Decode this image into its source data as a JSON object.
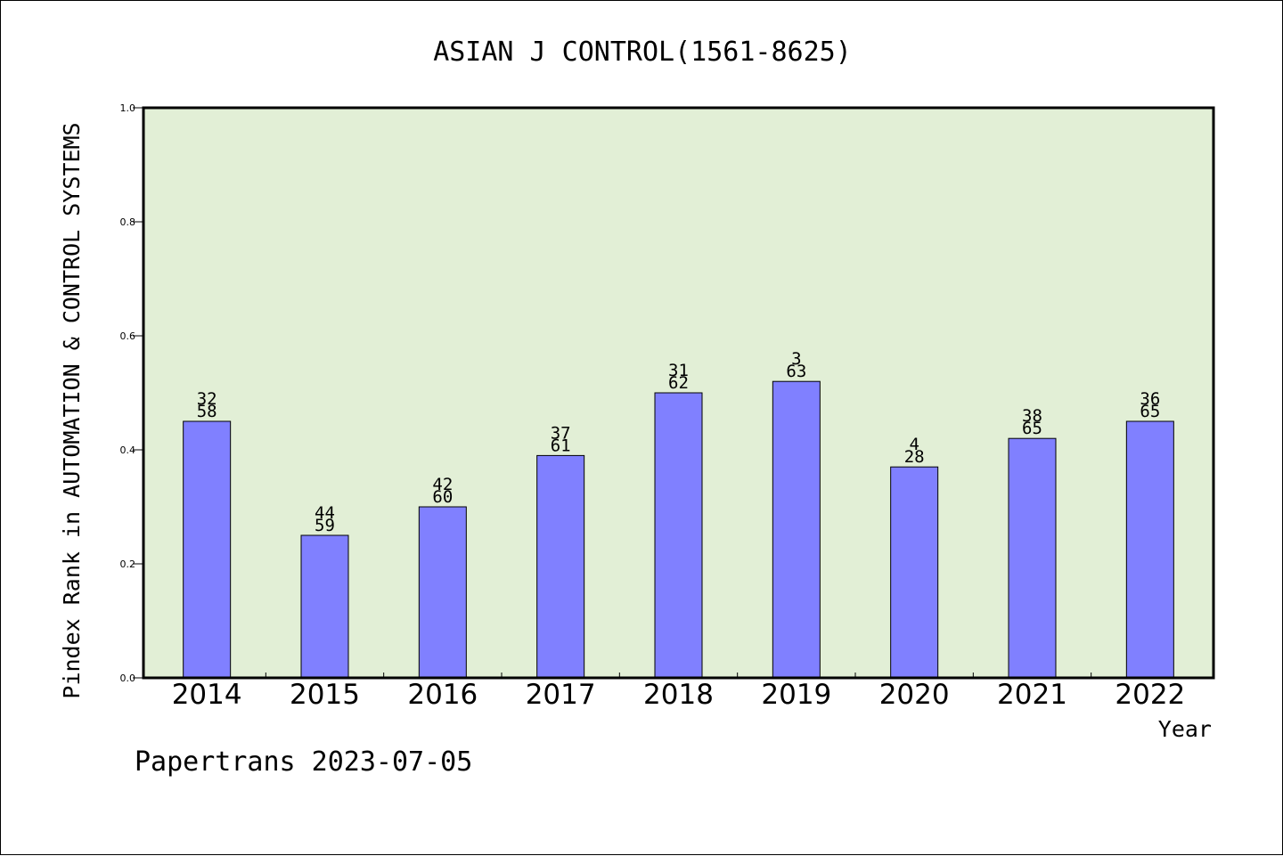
{
  "chart_data": {
    "type": "bar",
    "title": "ASIAN J CONTROL(1561-8625)",
    "xlabel": "Year",
    "ylabel": "Pindex Rank in AUTOMATION & CONTROL SYSTEMS",
    "ylim": [
      0,
      1.0
    ],
    "yticks": [
      "0.0",
      "0.2",
      "0.4",
      "0.6",
      "0.8",
      "1.0"
    ],
    "categories": [
      "2014",
      "2015",
      "2016",
      "2017",
      "2018",
      "2019",
      "2020",
      "2021",
      "2022"
    ],
    "values": [
      0.45,
      0.25,
      0.3,
      0.39,
      0.5,
      0.52,
      0.37,
      0.42,
      0.45
    ],
    "label_top": [
      "32",
      "44",
      "42",
      "37",
      "31",
      "3",
      "4",
      "38",
      "36"
    ],
    "label_bottom": [
      "58",
      "59",
      "60",
      "61",
      "62",
      "63",
      "28",
      "65",
      "65"
    ],
    "grid": false,
    "colors": {
      "bar": "#8080ff",
      "plot_background": "#e2efd6",
      "axis": "#000000"
    }
  },
  "footer": {
    "credit": "Papertrans 2023-07-05"
  }
}
